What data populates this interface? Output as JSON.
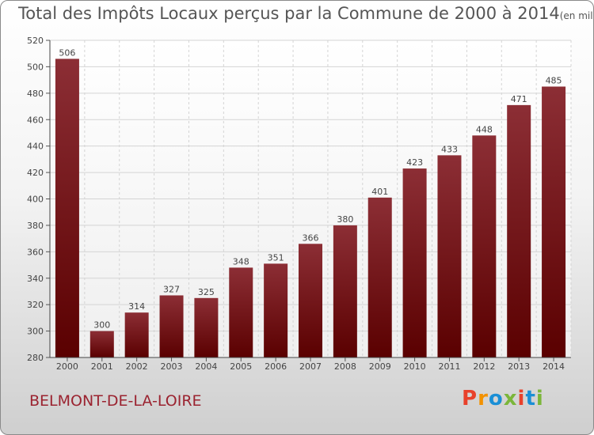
{
  "title": "Total des Impôts Locaux perçus par la Commune de 2000 à 2014",
  "unit_label": "(en milliers d'€)",
  "commune": "BELMONT-DE-LA-LOIRE",
  "brand": {
    "text": "Proxiti",
    "colors": [
      "#e8412b",
      "#f39200",
      "#1a8fd6",
      "#7bb63a",
      "#e8412b",
      "#1a8fd6",
      "#7bb63a"
    ]
  },
  "colors": {
    "bar_dark": "#5a0000",
    "bar_light": "#8c2e35",
    "title": "#555555",
    "commune": "#9b2330"
  },
  "chart_data": {
    "type": "bar",
    "categories": [
      "2000",
      "2001",
      "2002",
      "2003",
      "2004",
      "2005",
      "2006",
      "2007",
      "2008",
      "2009",
      "2010",
      "2011",
      "2012",
      "2013",
      "2014"
    ],
    "values": [
      506,
      300,
      314,
      327,
      325,
      348,
      351,
      366,
      380,
      401,
      423,
      433,
      448,
      471,
      485
    ],
    "ylim": [
      280,
      520
    ],
    "yticks": [
      280,
      300,
      320,
      340,
      360,
      380,
      400,
      420,
      440,
      460,
      480,
      500,
      520
    ],
    "grid": true
  }
}
